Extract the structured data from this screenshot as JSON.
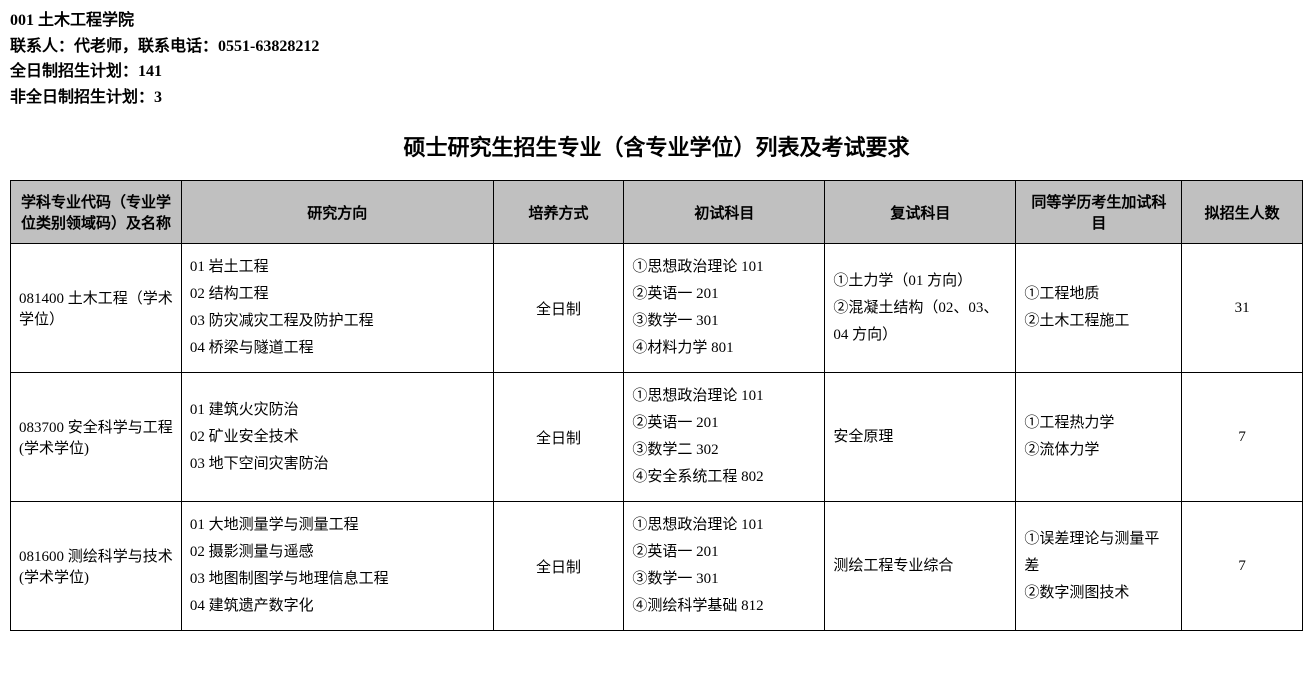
{
  "header": {
    "line1": "001 土木工程学院",
    "line2": "联系人：代老师，联系电话：0551-63828212",
    "line3": "全日制招生计划：141",
    "line4": "非全日制招生计划：3"
  },
  "title": "硕士研究生招生专业（含专业学位）列表及考试要求",
  "columns": {
    "c1": "学科专业代码（专业学位类别领域码）及名称",
    "c2": "研究方向",
    "c3": "培养方式",
    "c4": "初试科目",
    "c5": "复试科目",
    "c6": "同等学历考生加试科目",
    "c7": "拟招生人数"
  },
  "rows": [
    {
      "code": "081400 土木工程（学术学位）",
      "directions": [
        "01 岩土工程",
        "02 结构工程",
        "03 防灾减灾工程及防护工程",
        "04 桥梁与隧道工程"
      ],
      "mode": "全日制",
      "first_exam": [
        "①思想政治理论 101",
        "②英语一 201",
        "③数学一 301",
        "④材料力学 801"
      ],
      "second_exam": [
        "①土力学（01 方向）",
        "②混凝土结构（02、03、04 方向）"
      ],
      "equiv": [
        "①工程地质",
        "②土木工程施工"
      ],
      "count": "31"
    },
    {
      "code": "083700 安全科学与工程(学术学位)",
      "directions": [
        "01 建筑火灾防治",
        "02 矿业安全技术",
        "03 地下空间灾害防治"
      ],
      "mode": "全日制",
      "first_exam": [
        "①思想政治理论 101",
        "②英语一 201",
        "③数学二 302",
        "④安全系统工程 802"
      ],
      "second_exam": [
        "安全原理"
      ],
      "equiv": [
        "①工程热力学",
        "②流体力学"
      ],
      "count": "7"
    },
    {
      "code": "081600 测绘科学与技术(学术学位)",
      "directions": [
        "01 大地测量学与测量工程",
        "02 摄影测量与遥感",
        "03 地图制图学与地理信息工程",
        "04 建筑遗产数字化"
      ],
      "mode": "全日制",
      "first_exam": [
        "①思想政治理论 101",
        "②英语一 201",
        "③数学一 301",
        "④测绘科学基础 812"
      ],
      "second_exam": [
        "测绘工程专业综合"
      ],
      "equiv": [
        "①误差理论与测量平差",
        "②数字测图技术"
      ],
      "count": "7"
    }
  ]
}
